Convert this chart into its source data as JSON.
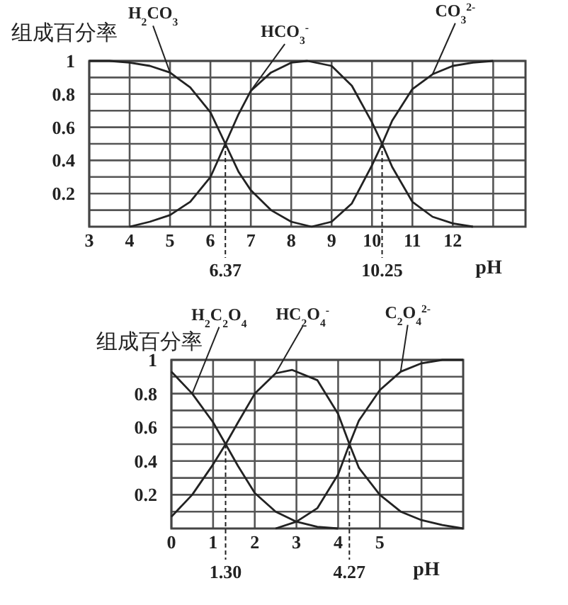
{
  "chart_data": [
    {
      "type": "line",
      "ylabel": "组成百分率",
      "xlabel": "pH",
      "xlim": [
        3,
        13.8
      ],
      "ylim": [
        0,
        1
      ],
      "xticks": [
        3,
        4,
        5,
        6,
        7,
        8,
        9,
        10,
        11,
        12,
        {
          "value": 13,
          "label": null
        }
      ],
      "yticks": [
        {
          "value": 0.1,
          "label": null
        },
        0.2,
        {
          "value": 0.3,
          "label": null
        },
        0.4,
        {
          "value": 0.5,
          "label": null
        },
        0.6,
        {
          "value": 0.7,
          "label": null
        },
        0.8,
        {
          "value": 0.9,
          "label": null
        },
        1
      ],
      "grid": true,
      "line_style": "solid",
      "series": [
        {
          "name": "H$_{2}$CO$_{3}$",
          "color": "#222222",
          "x": [
            3,
            3.5,
            4,
            4.5,
            5,
            5.5,
            6,
            6.37,
            6.7,
            7,
            7.5,
            8,
            8.5
          ],
          "values": [
            1,
            1,
            0.99,
            0.97,
            0.93,
            0.84,
            0.69,
            0.5,
            0.33,
            0.22,
            0.1,
            0.03,
            0
          ]
        },
        {
          "name": "HCO$_{3}$$^{-}$",
          "color": "#222222",
          "x": [
            4,
            4.5,
            5,
            5.5,
            6,
            6.37,
            6.7,
            7,
            7.5,
            8,
            8.4,
            9,
            9.5,
            10,
            10.25,
            10.5,
            11,
            11.5,
            12,
            12.5
          ],
          "values": [
            0,
            0.03,
            0.07,
            0.15,
            0.3,
            0.5,
            0.68,
            0.82,
            0.93,
            0.99,
            1,
            0.97,
            0.85,
            0.63,
            0.5,
            0.36,
            0.15,
            0.06,
            0.02,
            0
          ]
        },
        {
          "name": "CO$_{3}$$^{2-}$",
          "color": "#222222",
          "x": [
            8.5,
            9,
            9.5,
            10,
            10.25,
            10.5,
            11,
            11.5,
            12,
            12.5,
            13
          ],
          "values": [
            0,
            0.03,
            0.14,
            0.37,
            0.5,
            0.64,
            0.83,
            0.92,
            0.97,
            0.99,
            1
          ]
        }
      ],
      "ref_lines": [
        {
          "axis": "x",
          "value": 6.37,
          "label": "6.37",
          "line_style": "dashed"
        },
        {
          "axis": "x",
          "value": 10.25,
          "label": "10.25",
          "line_style": "dashed"
        }
      ]
    },
    {
      "type": "line",
      "ylabel": "组成百分率",
      "xlabel": "pH",
      "xlim": [
        0,
        7
      ],
      "ylim": [
        0,
        1
      ],
      "xticks": [
        0,
        1,
        2,
        3,
        4,
        5,
        {
          "value": 6,
          "label": null
        }
      ],
      "yticks": [
        {
          "value": 0.1,
          "label": null
        },
        0.2,
        {
          "value": 0.3,
          "label": null
        },
        0.4,
        {
          "value": 0.5,
          "label": null
        },
        0.6,
        {
          "value": 0.7,
          "label": null
        },
        0.8,
        {
          "value": 0.9,
          "label": null
        },
        1
      ],
      "grid": true,
      "line_style": "solid",
      "series": [
        {
          "name": "H$_{2}$C$_{2}$O$_{4}$",
          "color": "#222222",
          "x": [
            0,
            0.5,
            1,
            1.3,
            1.6,
            2,
            2.5,
            3,
            3.5,
            4
          ],
          "values": [
            0.93,
            0.8,
            0.63,
            0.5,
            0.37,
            0.21,
            0.1,
            0.04,
            0.01,
            0
          ]
        },
        {
          "name": "HC$_{2}$O$_{4}$$^{-}$",
          "color": "#222222",
          "x": [
            0,
            0.5,
            1,
            1.3,
            1.6,
            2,
            2.5,
            2.9,
            3.5,
            4,
            4.27,
            4.5,
            5,
            5.5,
            6,
            6.5,
            7
          ],
          "values": [
            0.07,
            0.2,
            0.38,
            0.5,
            0.63,
            0.8,
            0.92,
            0.94,
            0.88,
            0.68,
            0.5,
            0.36,
            0.2,
            0.1,
            0.05,
            0.02,
            0
          ]
        },
        {
          "name": "C$_{2}$O$_{4}$$^{2-}$",
          "color": "#222222",
          "x": [
            2.5,
            3,
            3.5,
            4,
            4.27,
            4.5,
            5,
            5.5,
            6,
            6.5,
            7
          ],
          "values": [
            0,
            0.04,
            0.12,
            0.32,
            0.5,
            0.64,
            0.82,
            0.93,
            0.98,
            1,
            1
          ]
        }
      ],
      "ref_lines": [
        {
          "axis": "x",
          "value": 1.3,
          "label": "1.30",
          "line_style": "dashed"
        },
        {
          "axis": "x",
          "value": 4.27,
          "label": "4.27",
          "line_style": "dashed"
        }
      ]
    }
  ]
}
